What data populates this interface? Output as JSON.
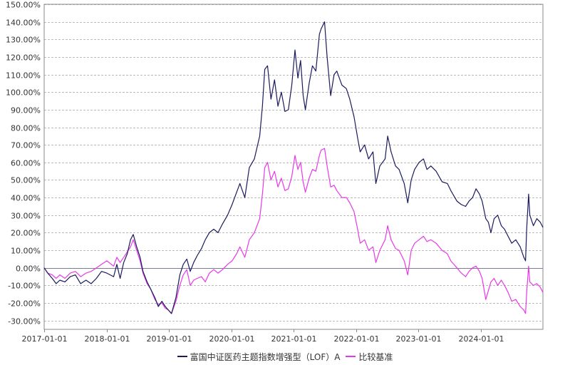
{
  "chart_data": {
    "type": "line",
    "title": "",
    "xlabel": "",
    "ylabel": "",
    "ylim": [
      -35,
      150
    ],
    "yticks": [
      150,
      140,
      130,
      120,
      110,
      100,
      90,
      80,
      70,
      60,
      50,
      40,
      30,
      20,
      10,
      0,
      -10,
      -20,
      -30
    ],
    "ytick_labels": [
      "150.00%",
      "140.00%",
      "130.00%",
      "120.00%",
      "110.00%",
      "100.00%",
      "90.00%",
      "80.00%",
      "70.00%",
      "60.00%",
      "50.00%",
      "40.00%",
      "30.00%",
      "20.00%",
      "10.00%",
      "0.00%",
      "-10.00%",
      "-20.00%",
      "-30.00%"
    ],
    "xlim": [
      "2016-12-30",
      "2024-12-31"
    ],
    "xticks": [
      "2017-01-01",
      "2018-01-01",
      "2019-01-01",
      "2020-01-01",
      "2021-01-01",
      "2022-01-01",
      "2023-01-01",
      "2024-01-01"
    ],
    "grid": true,
    "legend_position": "bottom",
    "series": [
      {
        "name": "富国中证医药主题指数增强型（LOF）A",
        "color": "#1a1a5e",
        "points": [
          [
            "2016-12-30",
            0
          ],
          [
            "2017-01-20",
            -3
          ],
          [
            "2017-02-15",
            -6
          ],
          [
            "2017-03-10",
            -9
          ],
          [
            "2017-04-01",
            -7
          ],
          [
            "2017-05-01",
            -8
          ],
          [
            "2017-06-01",
            -5
          ],
          [
            "2017-07-01",
            -4
          ],
          [
            "2017-08-01",
            -9
          ],
          [
            "2017-09-01",
            -7
          ],
          [
            "2017-10-01",
            -9
          ],
          [
            "2017-11-01",
            -6
          ],
          [
            "2017-12-01",
            -2
          ],
          [
            "2018-01-01",
            -3
          ],
          [
            "2018-02-10",
            -5
          ],
          [
            "2018-03-01",
            2
          ],
          [
            "2018-03-20",
            -6
          ],
          [
            "2018-04-10",
            3
          ],
          [
            "2018-05-01",
            8
          ],
          [
            "2018-05-20",
            16
          ],
          [
            "2018-06-05",
            19
          ],
          [
            "2018-06-25",
            12
          ],
          [
            "2018-07-15",
            6
          ],
          [
            "2018-08-01",
            -2
          ],
          [
            "2018-08-25",
            -8
          ],
          [
            "2018-09-15",
            -12
          ],
          [
            "2018-10-10",
            -17
          ],
          [
            "2018-10-30",
            -22
          ],
          [
            "2018-11-20",
            -19
          ],
          [
            "2018-12-10",
            -22
          ],
          [
            "2018-12-28",
            -24
          ],
          [
            "2019-01-15",
            -26
          ],
          [
            "2019-02-10",
            -17
          ],
          [
            "2019-03-05",
            -4
          ],
          [
            "2019-03-25",
            2
          ],
          [
            "2019-04-15",
            5
          ],
          [
            "2019-05-05",
            -2
          ],
          [
            "2019-05-25",
            3
          ],
          [
            "2019-06-15",
            7
          ],
          [
            "2019-07-10",
            11
          ],
          [
            "2019-08-01",
            16
          ],
          [
            "2019-08-25",
            20
          ],
          [
            "2019-09-20",
            22
          ],
          [
            "2019-10-15",
            20
          ],
          [
            "2019-11-10",
            25
          ],
          [
            "2019-12-10",
            30
          ],
          [
            "2020-01-05",
            36
          ],
          [
            "2020-02-01",
            43
          ],
          [
            "2020-02-20",
            48
          ],
          [
            "2020-03-20",
            40
          ],
          [
            "2020-04-15",
            57
          ],
          [
            "2020-05-15",
            62
          ],
          [
            "2020-06-15",
            75
          ],
          [
            "2020-07-01",
            92
          ],
          [
            "2020-07-15",
            113
          ],
          [
            "2020-07-31",
            115
          ],
          [
            "2020-08-20",
            96
          ],
          [
            "2020-09-10",
            107
          ],
          [
            "2020-09-30",
            92
          ],
          [
            "2020-10-20",
            100
          ],
          [
            "2020-11-10",
            89
          ],
          [
            "2020-11-30",
            90
          ],
          [
            "2020-12-20",
            104
          ],
          [
            "2021-01-08",
            124
          ],
          [
            "2021-01-25",
            108
          ],
          [
            "2021-02-10",
            118
          ],
          [
            "2021-02-25",
            98
          ],
          [
            "2021-03-10",
            90
          ],
          [
            "2021-04-01",
            105
          ],
          [
            "2021-04-20",
            115
          ],
          [
            "2021-05-10",
            112
          ],
          [
            "2021-05-31",
            133
          ],
          [
            "2021-06-10",
            136
          ],
          [
            "2021-06-30",
            140
          ],
          [
            "2021-07-15",
            120
          ],
          [
            "2021-08-05",
            98
          ],
          [
            "2021-08-25",
            110
          ],
          [
            "2021-09-10",
            112
          ],
          [
            "2021-10-10",
            104
          ],
          [
            "2021-11-05",
            102
          ],
          [
            "2021-11-25",
            96
          ],
          [
            "2021-12-20",
            86
          ],
          [
            "2022-01-10",
            74
          ],
          [
            "2022-01-25",
            66
          ],
          [
            "2022-02-20",
            70
          ],
          [
            "2022-03-15",
            62
          ],
          [
            "2022-04-10",
            66
          ],
          [
            "2022-04-27",
            48
          ],
          [
            "2022-05-20",
            58
          ],
          [
            "2022-06-20",
            62
          ],
          [
            "2022-07-05",
            75
          ],
          [
            "2022-07-25",
            66
          ],
          [
            "2022-08-20",
            58
          ],
          [
            "2022-09-10",
            56
          ],
          [
            "2022-10-10",
            48
          ],
          [
            "2022-10-31",
            37
          ],
          [
            "2022-11-20",
            50
          ],
          [
            "2022-12-10",
            56
          ],
          [
            "2023-01-05",
            60
          ],
          [
            "2023-01-31",
            62
          ],
          [
            "2023-02-20",
            56
          ],
          [
            "2023-03-15",
            58
          ],
          [
            "2023-04-15",
            55
          ],
          [
            "2023-05-20",
            49
          ],
          [
            "2023-06-20",
            48
          ],
          [
            "2023-07-10",
            44
          ],
          [
            "2023-08-15",
            38
          ],
          [
            "2023-09-10",
            36
          ],
          [
            "2023-10-05",
            35
          ],
          [
            "2023-10-25",
            38
          ],
          [
            "2023-11-15",
            40
          ],
          [
            "2023-12-05",
            45
          ],
          [
            "2023-12-25",
            42
          ],
          [
            "2024-01-10",
            38
          ],
          [
            "2024-01-31",
            28
          ],
          [
            "2024-02-15",
            26
          ],
          [
            "2024-03-01",
            20
          ],
          [
            "2024-03-20",
            28
          ],
          [
            "2024-04-10",
            30
          ],
          [
            "2024-05-01",
            24
          ],
          [
            "2024-05-20",
            22
          ],
          [
            "2024-06-10",
            18
          ],
          [
            "2024-07-01",
            14
          ],
          [
            "2024-07-25",
            16
          ],
          [
            "2024-08-20",
            12
          ],
          [
            "2024-09-10",
            6
          ],
          [
            "2024-09-20",
            4
          ],
          [
            "2024-09-27",
            22
          ],
          [
            "2024-10-08",
            42
          ],
          [
            "2024-10-15",
            30
          ],
          [
            "2024-11-05",
            24
          ],
          [
            "2024-11-25",
            28
          ],
          [
            "2024-12-15",
            26
          ],
          [
            "2024-12-31",
            23
          ]
        ]
      },
      {
        "name": "比较基准",
        "color": "#e838e8",
        "points": [
          [
            "2016-12-30",
            0
          ],
          [
            "2017-01-20",
            -3
          ],
          [
            "2017-02-15",
            -4
          ],
          [
            "2017-03-10",
            -6
          ],
          [
            "2017-04-01",
            -4
          ],
          [
            "2017-05-01",
            -6
          ],
          [
            "2017-06-01",
            -3
          ],
          [
            "2017-07-01",
            -2
          ],
          [
            "2017-08-01",
            -5
          ],
          [
            "2017-09-01",
            -3
          ],
          [
            "2017-10-01",
            -2
          ],
          [
            "2017-11-01",
            0
          ],
          [
            "2017-12-01",
            2
          ],
          [
            "2018-01-01",
            4
          ],
          [
            "2018-02-10",
            1
          ],
          [
            "2018-03-01",
            6
          ],
          [
            "2018-03-20",
            3
          ],
          [
            "2018-04-10",
            6
          ],
          [
            "2018-05-01",
            9
          ],
          [
            "2018-05-20",
            12
          ],
          [
            "2018-06-05",
            16
          ],
          [
            "2018-06-25",
            10
          ],
          [
            "2018-07-15",
            4
          ],
          [
            "2018-08-01",
            -3
          ],
          [
            "2018-08-25",
            -9
          ],
          [
            "2018-09-15",
            -12
          ],
          [
            "2018-10-10",
            -18
          ],
          [
            "2018-10-30",
            -21
          ],
          [
            "2018-11-20",
            -20
          ],
          [
            "2018-12-10",
            -23
          ],
          [
            "2018-12-28",
            -24
          ],
          [
            "2019-01-15",
            -26
          ],
          [
            "2019-02-10",
            -19
          ],
          [
            "2019-03-05",
            -10
          ],
          [
            "2019-03-25",
            -4
          ],
          [
            "2019-04-15",
            -1
          ],
          [
            "2019-05-05",
            -10
          ],
          [
            "2019-05-25",
            -7
          ],
          [
            "2019-06-15",
            -6
          ],
          [
            "2019-07-10",
            -5
          ],
          [
            "2019-08-01",
            -8
          ],
          [
            "2019-08-25",
            -3
          ],
          [
            "2019-09-20",
            -1
          ],
          [
            "2019-10-15",
            -3
          ],
          [
            "2019-11-10",
            -1
          ],
          [
            "2019-12-10",
            2
          ],
          [
            "2020-01-05",
            4
          ],
          [
            "2020-02-01",
            8
          ],
          [
            "2020-02-20",
            12
          ],
          [
            "2020-03-20",
            6
          ],
          [
            "2020-04-15",
            16
          ],
          [
            "2020-05-15",
            20
          ],
          [
            "2020-06-15",
            28
          ],
          [
            "2020-07-01",
            42
          ],
          [
            "2020-07-15",
            57
          ],
          [
            "2020-07-31",
            60
          ],
          [
            "2020-08-20",
            50
          ],
          [
            "2020-09-10",
            55
          ],
          [
            "2020-09-30",
            46
          ],
          [
            "2020-10-20",
            51
          ],
          [
            "2020-11-10",
            44
          ],
          [
            "2020-11-30",
            45
          ],
          [
            "2020-12-20",
            52
          ],
          [
            "2021-01-08",
            64
          ],
          [
            "2021-01-25",
            56
          ],
          [
            "2021-02-10",
            60
          ],
          [
            "2021-02-25",
            49
          ],
          [
            "2021-03-10",
            43
          ],
          [
            "2021-04-01",
            51
          ],
          [
            "2021-04-20",
            56
          ],
          [
            "2021-05-10",
            55
          ],
          [
            "2021-05-31",
            64
          ],
          [
            "2021-06-10",
            67
          ],
          [
            "2021-06-30",
            68
          ],
          [
            "2021-07-15",
            58
          ],
          [
            "2021-08-05",
            46
          ],
          [
            "2021-08-25",
            47
          ],
          [
            "2021-09-10",
            44
          ],
          [
            "2021-10-10",
            40
          ],
          [
            "2021-11-05",
            40
          ],
          [
            "2021-11-25",
            37
          ],
          [
            "2021-12-20",
            32
          ],
          [
            "2022-01-10",
            22
          ],
          [
            "2022-01-25",
            14
          ],
          [
            "2022-02-20",
            16
          ],
          [
            "2022-03-15",
            10
          ],
          [
            "2022-04-10",
            12
          ],
          [
            "2022-04-27",
            3
          ],
          [
            "2022-05-20",
            10
          ],
          [
            "2022-06-20",
            16
          ],
          [
            "2022-07-05",
            24
          ],
          [
            "2022-07-25",
            16
          ],
          [
            "2022-08-20",
            11
          ],
          [
            "2022-09-10",
            10
          ],
          [
            "2022-10-10",
            4
          ],
          [
            "2022-10-31",
            -4
          ],
          [
            "2022-11-20",
            10
          ],
          [
            "2022-12-10",
            14
          ],
          [
            "2023-01-05",
            16
          ],
          [
            "2023-01-31",
            18
          ],
          [
            "2023-02-20",
            15
          ],
          [
            "2023-03-15",
            16
          ],
          [
            "2023-04-15",
            14
          ],
          [
            "2023-05-20",
            10
          ],
          [
            "2023-06-20",
            8
          ],
          [
            "2023-07-10",
            4
          ],
          [
            "2023-08-15",
            0
          ],
          [
            "2023-09-10",
            -3
          ],
          [
            "2023-10-05",
            -5
          ],
          [
            "2023-10-25",
            -2
          ],
          [
            "2023-11-15",
            0
          ],
          [
            "2023-12-05",
            1
          ],
          [
            "2023-12-25",
            -2
          ],
          [
            "2024-01-10",
            -6
          ],
          [
            "2024-01-31",
            -18
          ],
          [
            "2024-02-15",
            -13
          ],
          [
            "2024-03-01",
            -8
          ],
          [
            "2024-03-20",
            -6
          ],
          [
            "2024-04-10",
            -10
          ],
          [
            "2024-05-01",
            -7
          ],
          [
            "2024-05-20",
            -10
          ],
          [
            "2024-06-10",
            -14
          ],
          [
            "2024-07-01",
            -19
          ],
          [
            "2024-07-25",
            -18
          ],
          [
            "2024-08-20",
            -22
          ],
          [
            "2024-09-10",
            -24
          ],
          [
            "2024-09-20",
            -26
          ],
          [
            "2024-09-27",
            -14
          ],
          [
            "2024-10-08",
            1
          ],
          [
            "2024-10-15",
            -8
          ],
          [
            "2024-11-05",
            -10
          ],
          [
            "2024-11-25",
            -9
          ],
          [
            "2024-12-15",
            -11
          ],
          [
            "2024-12-31",
            -14
          ]
        ]
      }
    ]
  }
}
